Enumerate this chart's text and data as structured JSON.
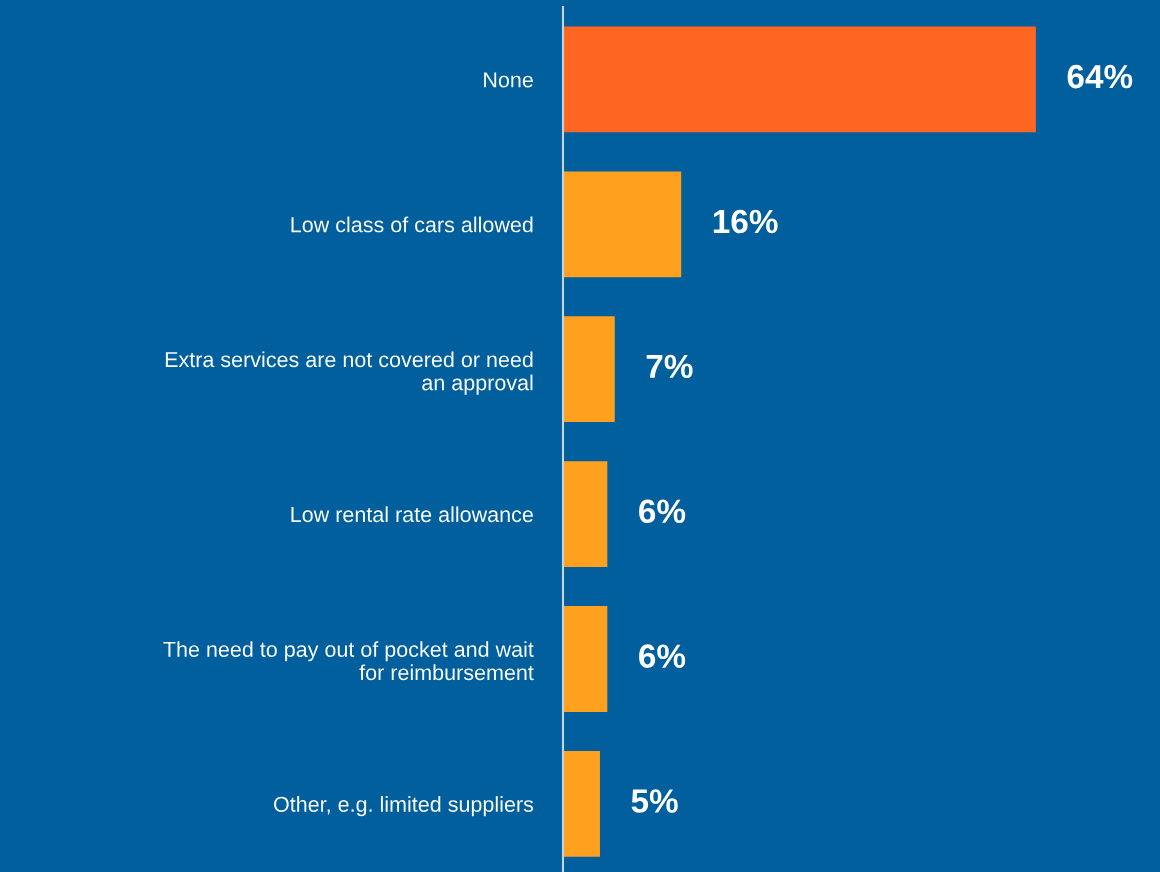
{
  "chart_data": {
    "type": "bar",
    "orientation": "horizontal",
    "categories": [
      "None",
      "Low class of cars allowed",
      "Extra services are not covered or need\nan approval",
      "Low rental rate allowance",
      "The need to pay out of pocket and wait\nfor reimbursement",
      "Other, e.g. limited suppliers"
    ],
    "values": [
      64,
      16,
      7,
      6,
      6,
      5
    ],
    "colors": [
      "#ff6622",
      "#ffa01e",
      "#ffa01e",
      "#ffa01e",
      "#ffa01e",
      "#ffa01e"
    ],
    "value_labels": [
      "64%",
      "16%",
      "7%",
      "6%",
      "6%",
      "5%"
    ],
    "xlim": [
      0,
      80.8
    ],
    "tick_labels": "y",
    "grid": false,
    "legend": false
  }
}
